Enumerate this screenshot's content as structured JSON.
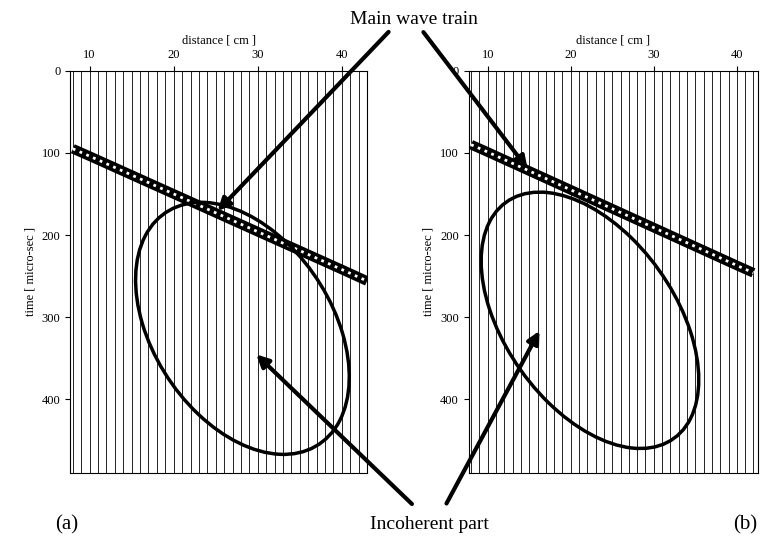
{
  "annotations": {
    "main": "Main wave train",
    "incoherent": "Incoherent part"
  },
  "chart_data": [
    {
      "type": "line",
      "label": "(a)",
      "xlabel": "distance [ cm ]",
      "ylabel": "time [ micro-sec ]",
      "xlim": [
        7.7,
        43
      ],
      "xticks": [
        10,
        20,
        30,
        40
      ],
      "ylim": [
        490,
        0
      ],
      "yticks": [
        0,
        100,
        200,
        300,
        400
      ],
      "x": [
        8,
        10,
        15,
        20,
        25,
        30,
        35,
        40,
        43
      ],
      "series": [
        {
          "color": "#000000",
          "line_style": "solid",
          "values": [
            95,
            104,
            127,
            150,
            173,
            196,
            219,
            242,
            256
          ]
        }
      ],
      "trace_positions": [
        8,
        9,
        10,
        11,
        12,
        13,
        14,
        15,
        16,
        17,
        18,
        19,
        20,
        21,
        22,
        23,
        24,
        25,
        26,
        27,
        28,
        29,
        30,
        31,
        32,
        33,
        34,
        35,
        36,
        37,
        38,
        39,
        40,
        41,
        42,
        43
      ]
    },
    {
      "type": "line",
      "label": "(b)",
      "xlabel": "distance [ cm ]",
      "ylabel": "time [ micro-sec ]",
      "xlim": [
        7.7,
        42.5
      ],
      "xticks": [
        10,
        20,
        30,
        40
      ],
      "ylim": [
        490,
        0
      ],
      "yticks": [
        0,
        100,
        200,
        300,
        400
      ],
      "x": [
        8,
        10,
        15,
        20,
        25,
        30,
        35,
        40,
        42
      ],
      "series": [
        {
          "color": "#000000",
          "line_style": "solid",
          "values": [
            90,
            99,
            122,
            145,
            168,
            191,
            214,
            237,
            246
          ]
        }
      ],
      "trace_positions": [
        8,
        9,
        10,
        11,
        12,
        13,
        14,
        15,
        16,
        17,
        18,
        19,
        20,
        21,
        22,
        23,
        24,
        25,
        26,
        27,
        28,
        29,
        30,
        31,
        32,
        33,
        34,
        35,
        36,
        37,
        38,
        39,
        40,
        41,
        42
      ]
    }
  ]
}
